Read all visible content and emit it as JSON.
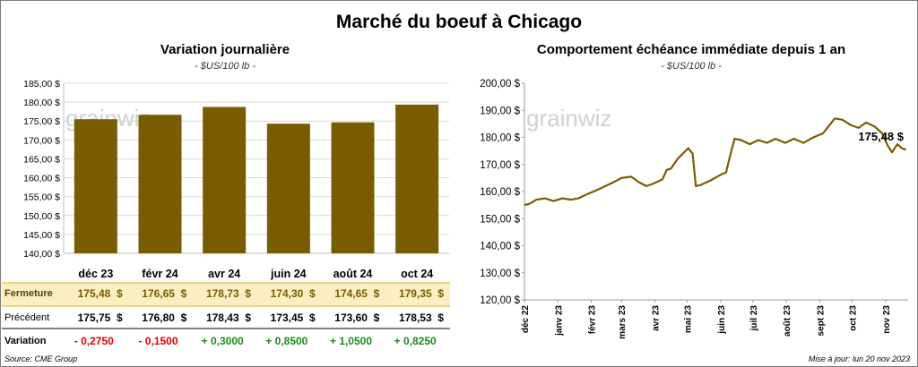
{
  "header": {
    "title": "Marché du boeuf à Chicago"
  },
  "left_chart_text": {
    "title": "Variation  journalière",
    "unit": "- $US/100 lb -"
  },
  "right_chart_text": {
    "title": "Comportement  échéance  immédiate  depuis  1  an",
    "unit": "- $US/100 lb -"
  },
  "watermark": "grainwiz",
  "table": {
    "fermeture_label": "Fermeture",
    "precedent_label": "Précédent",
    "variation_label": "Variation",
    "fermeture": [
      "175,48  $",
      "176,65  $",
      "178,73  $",
      "174,30  $",
      "174,65  $",
      "179,35  $"
    ],
    "precedent": [
      "175,75  $",
      "176,80  $",
      "178,43  $",
      "173,45  $",
      "173,60  $",
      "178,53  $"
    ],
    "variation": [
      "- 0,2750",
      "- 0,1500",
      "+ 0,3000",
      "+ 0,8500",
      "+ 1,0500",
      "+ 0,8250"
    ]
  },
  "footer": {
    "source": "Source: CME Group",
    "updated": "Mise à jour: lun 20 nov 2023"
  },
  "colors": {
    "bar": "#7a5c00",
    "line": "#7a5c00",
    "highlight_row": "#fbeec2",
    "negative": "#e00000",
    "positive": "#1a8a1a"
  },
  "chart_data": [
    {
      "type": "bar",
      "title": "Variation  journalière",
      "ylabel": "- $US/100 lb -",
      "categories": [
        "déc 23",
        "févr 24",
        "avr 24",
        "juin 24",
        "août 24",
        "oct 24"
      ],
      "values": [
        175.48,
        176.65,
        178.73,
        174.3,
        174.65,
        179.35
      ],
      "ylim": [
        140,
        185
      ],
      "yticks": [
        140,
        145,
        150,
        155,
        160,
        165,
        170,
        175,
        180,
        185
      ],
      "ytick_labels": [
        "140,00 $",
        "145,00 $",
        "150,00 $",
        "155,00 $",
        "160,00 $",
        "165,00 $",
        "170,00 $",
        "175,00 $",
        "180,00 $",
        "185,00 $"
      ],
      "grid": true,
      "legend": "none"
    },
    {
      "type": "line",
      "title": "Comportement  échéance  immédiate  depuis  1  an",
      "ylabel": "- $US/100 lb -",
      "x_labels": [
        "déc 22",
        "janv 23",
        "févr 23",
        "mars 23",
        "avr 23",
        "mai 23",
        "juin 23",
        "juil 23",
        "août 23",
        "sept 23",
        "oct 23",
        "nov 23"
      ],
      "ylim": [
        120,
        200
      ],
      "yticks": [
        120,
        130,
        140,
        150,
        160,
        170,
        180,
        190,
        200
      ],
      "ytick_labels": [
        "120,00 $",
        "130,00 $",
        "140,00 $",
        "150,00 $",
        "160,00 $",
        "170,00 $",
        "180,00 $",
        "190,00 $",
        "200,00 $"
      ],
      "last_value_label": "175,48 $",
      "points": [
        [
          "2022-12-01",
          155
        ],
        [
          "2022-12-06",
          155.5
        ],
        [
          "2022-12-12",
          157
        ],
        [
          "2022-12-20",
          157.5
        ],
        [
          "2022-12-28",
          156.5
        ],
        [
          "2023-01-05",
          157.5
        ],
        [
          "2023-01-13",
          157
        ],
        [
          "2023-01-20",
          157.5
        ],
        [
          "2023-01-28",
          159
        ],
        [
          "2023-02-06",
          160.5
        ],
        [
          "2023-02-14",
          162
        ],
        [
          "2023-02-22",
          163.5
        ],
        [
          "2023-03-01",
          165
        ],
        [
          "2023-03-10",
          165.5
        ],
        [
          "2023-03-17",
          163.5
        ],
        [
          "2023-03-24",
          162
        ],
        [
          "2023-03-31",
          163
        ],
        [
          "2023-04-08",
          164.5
        ],
        [
          "2023-04-12",
          168
        ],
        [
          "2023-04-16",
          168.5
        ],
        [
          "2023-04-22",
          172
        ],
        [
          "2023-04-27",
          174
        ],
        [
          "2023-05-02",
          176
        ],
        [
          "2023-05-06",
          174
        ],
        [
          "2023-05-09",
          162
        ],
        [
          "2023-05-14",
          162.5
        ],
        [
          "2023-05-22",
          164
        ],
        [
          "2023-05-31",
          166
        ],
        [
          "2023-06-06",
          167
        ],
        [
          "2023-06-11",
          175
        ],
        [
          "2023-06-14",
          179.5
        ],
        [
          "2023-06-20",
          179
        ],
        [
          "2023-06-28",
          177.5
        ],
        [
          "2023-07-06",
          179
        ],
        [
          "2023-07-14",
          178
        ],
        [
          "2023-07-22",
          179.5
        ],
        [
          "2023-07-31",
          178
        ],
        [
          "2023-08-08",
          179.5
        ],
        [
          "2023-08-17",
          178
        ],
        [
          "2023-08-26",
          180
        ],
        [
          "2023-09-04",
          181.5
        ],
        [
          "2023-09-10",
          184.5
        ],
        [
          "2023-09-15",
          187
        ],
        [
          "2023-09-22",
          186.5
        ],
        [
          "2023-09-30",
          184.5
        ],
        [
          "2023-10-07",
          183.5
        ],
        [
          "2023-10-14",
          185.5
        ],
        [
          "2023-10-22",
          184
        ],
        [
          "2023-10-29",
          181.5
        ],
        [
          "2023-11-03",
          177
        ],
        [
          "2023-11-07",
          174.5
        ],
        [
          "2023-11-12",
          177.5
        ],
        [
          "2023-11-16",
          176
        ],
        [
          "2023-11-20",
          175.48
        ]
      ],
      "grid": false,
      "legend": "none"
    }
  ]
}
